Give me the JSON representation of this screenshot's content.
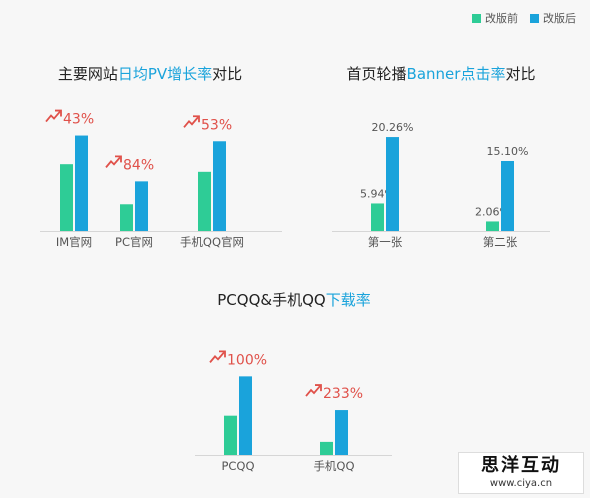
{
  "legend": {
    "before": "改版前",
    "after": "改版后"
  },
  "colors": {
    "before": "#2ecc96",
    "after": "#1aa3db",
    "growth": "#e0514a",
    "title_hl": "#1aa3db"
  },
  "chart_data": [
    {
      "type": "bar",
      "title_prefix": "主要网站",
      "title_highlight": "日均PV增长率",
      "title_suffix": "对比",
      "categories": [
        "IM官网",
        "PC官网",
        "手机QQ官网"
      ],
      "series": [
        {
          "name": "改版前",
          "values": [
            3.5,
            1.4,
            3.1
          ]
        },
        {
          "name": "改版后",
          "values": [
            5.0,
            2.6,
            4.7
          ]
        }
      ],
      "growth_labels": [
        "43%",
        "84%",
        "53%"
      ],
      "ylim": [
        0,
        5.5
      ]
    },
    {
      "type": "bar",
      "title_prefix": "首页轮播",
      "title_highlight": "Banner点击率",
      "title_suffix": "对比",
      "categories": [
        "第一张",
        "第二张"
      ],
      "series": [
        {
          "name": "改版前",
          "values": [
            5.94,
            2.06
          ],
          "labels": [
            "5.94%",
            "2.06%"
          ]
        },
        {
          "name": "改版后",
          "values": [
            20.26,
            15.1
          ],
          "labels": [
            "20.26%",
            "15.10%"
          ]
        }
      ],
      "ylim": [
        0,
        22
      ]
    },
    {
      "type": "bar",
      "title_prefix": "PCQQ&手机QQ",
      "title_highlight": "下载率",
      "title_suffix": "",
      "categories": [
        "PCQQ",
        "手机QQ"
      ],
      "series": [
        {
          "name": "改版前",
          "values": [
            2.1,
            0.7
          ]
        },
        {
          "name": "改版后",
          "values": [
            4.2,
            2.4
          ]
        }
      ],
      "growth_labels": [
        "100%",
        "233%"
      ],
      "ylim": [
        0,
        4.7
      ]
    }
  ],
  "watermark": {
    "line1": "思洋互动",
    "line2": "www.ciya.cn"
  }
}
